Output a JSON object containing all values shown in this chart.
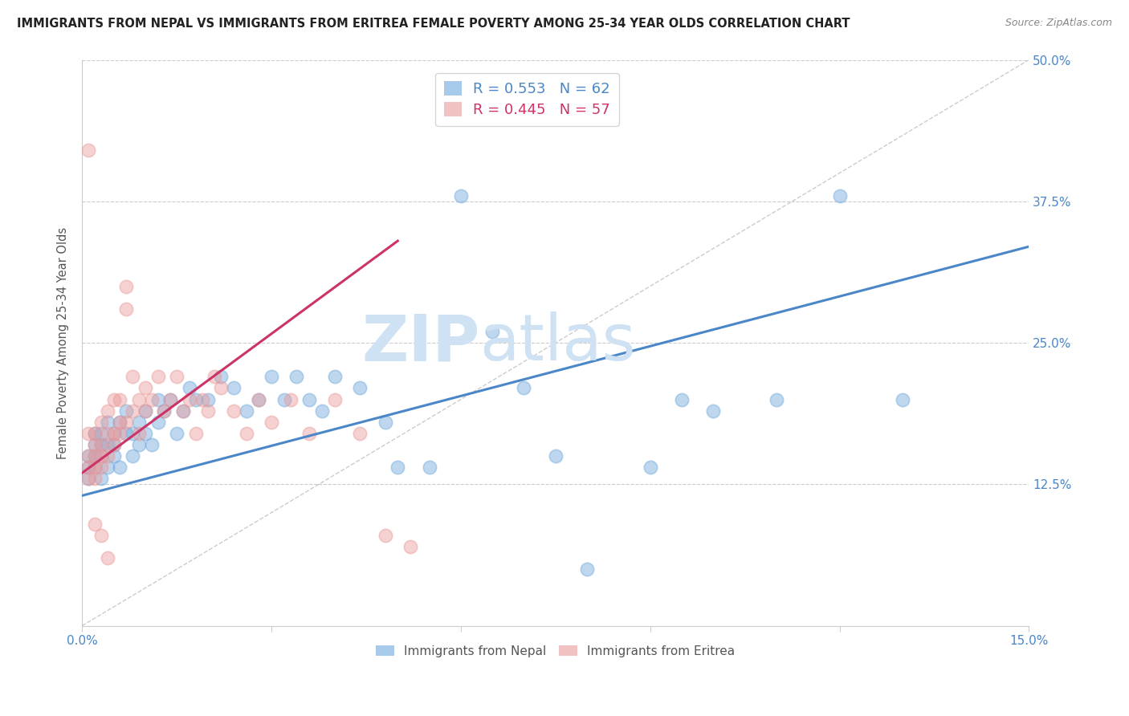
{
  "title": "IMMIGRANTS FROM NEPAL VS IMMIGRANTS FROM ERITREA FEMALE POVERTY AMONG 25-34 YEAR OLDS CORRELATION CHART",
  "source": "Source: ZipAtlas.com",
  "ylabel": "Female Poverty Among 25-34 Year Olds",
  "xlim": [
    0.0,
    0.15
  ],
  "ylim": [
    0.0,
    0.5
  ],
  "xticks": [
    0.0,
    0.03,
    0.06,
    0.09,
    0.12,
    0.15
  ],
  "xticklabels": [
    "0.0%",
    "",
    "",
    "",
    "",
    "15.0%"
  ],
  "yticks": [
    0.0,
    0.125,
    0.25,
    0.375,
    0.5
  ],
  "yticklabels": [
    "",
    "12.5%",
    "25.0%",
    "37.5%",
    "50.0%"
  ],
  "nepal_R": 0.553,
  "nepal_N": 62,
  "eritrea_R": 0.445,
  "eritrea_N": 57,
  "nepal_color": "#6fa8dc",
  "eritrea_color": "#ea9999",
  "nepal_line_color": "#4a86c8",
  "eritrea_line_color": "#cc3366",
  "diagonal_line_color": "#cccccc",
  "background_color": "#ffffff",
  "grid_color": "#cccccc",
  "tick_color": "#4a86c8",
  "watermark_color": "#cfe2f3",
  "nepal_scatter_x": [
    0.001,
    0.001,
    0.001,
    0.002,
    0.002,
    0.002,
    0.002,
    0.003,
    0.003,
    0.003,
    0.003,
    0.004,
    0.004,
    0.004,
    0.005,
    0.005,
    0.005,
    0.006,
    0.006,
    0.007,
    0.007,
    0.008,
    0.008,
    0.009,
    0.009,
    0.01,
    0.01,
    0.011,
    0.012,
    0.012,
    0.013,
    0.014,
    0.015,
    0.016,
    0.017,
    0.018,
    0.02,
    0.022,
    0.024,
    0.026,
    0.028,
    0.03,
    0.032,
    0.034,
    0.036,
    0.038,
    0.04,
    0.044,
    0.048,
    0.05,
    0.055,
    0.06,
    0.065,
    0.07,
    0.075,
    0.08,
    0.09,
    0.095,
    0.1,
    0.11,
    0.12,
    0.13
  ],
  "nepal_scatter_y": [
    0.14,
    0.15,
    0.13,
    0.16,
    0.14,
    0.15,
    0.17,
    0.15,
    0.13,
    0.17,
    0.16,
    0.14,
    0.16,
    0.18,
    0.15,
    0.17,
    0.16,
    0.18,
    0.14,
    0.17,
    0.19,
    0.15,
    0.17,
    0.16,
    0.18,
    0.17,
    0.19,
    0.16,
    0.18,
    0.2,
    0.19,
    0.2,
    0.17,
    0.19,
    0.21,
    0.2,
    0.2,
    0.22,
    0.21,
    0.19,
    0.2,
    0.22,
    0.2,
    0.22,
    0.2,
    0.19,
    0.22,
    0.21,
    0.18,
    0.14,
    0.14,
    0.38,
    0.26,
    0.21,
    0.15,
    0.05,
    0.14,
    0.2,
    0.19,
    0.2,
    0.38,
    0.2
  ],
  "eritrea_scatter_x": [
    0.001,
    0.001,
    0.001,
    0.001,
    0.002,
    0.002,
    0.002,
    0.002,
    0.002,
    0.003,
    0.003,
    0.003,
    0.003,
    0.004,
    0.004,
    0.004,
    0.005,
    0.005,
    0.005,
    0.006,
    0.006,
    0.006,
    0.007,
    0.007,
    0.007,
    0.008,
    0.008,
    0.009,
    0.009,
    0.01,
    0.01,
    0.011,
    0.012,
    0.013,
    0.014,
    0.015,
    0.016,
    0.017,
    0.018,
    0.019,
    0.02,
    0.021,
    0.022,
    0.024,
    0.026,
    0.028,
    0.03,
    0.033,
    0.036,
    0.04,
    0.044,
    0.048,
    0.052,
    0.001,
    0.002,
    0.003,
    0.004
  ],
  "eritrea_scatter_y": [
    0.15,
    0.14,
    0.13,
    0.17,
    0.15,
    0.16,
    0.13,
    0.14,
    0.17,
    0.16,
    0.14,
    0.18,
    0.15,
    0.17,
    0.15,
    0.19,
    0.2,
    0.17,
    0.16,
    0.2,
    0.18,
    0.17,
    0.3,
    0.28,
    0.18,
    0.22,
    0.19,
    0.2,
    0.17,
    0.19,
    0.21,
    0.2,
    0.22,
    0.19,
    0.2,
    0.22,
    0.19,
    0.2,
    0.17,
    0.2,
    0.19,
    0.22,
    0.21,
    0.19,
    0.17,
    0.2,
    0.18,
    0.2,
    0.17,
    0.2,
    0.17,
    0.08,
    0.07,
    0.42,
    0.09,
    0.08,
    0.06
  ],
  "nepal_line_x0": 0.0,
  "nepal_line_y0": 0.115,
  "nepal_line_x1": 0.15,
  "nepal_line_y1": 0.335,
  "eritrea_line_x0": 0.0,
  "eritrea_line_y0": 0.135,
  "eritrea_line_x1": 0.05,
  "eritrea_line_y1": 0.34
}
